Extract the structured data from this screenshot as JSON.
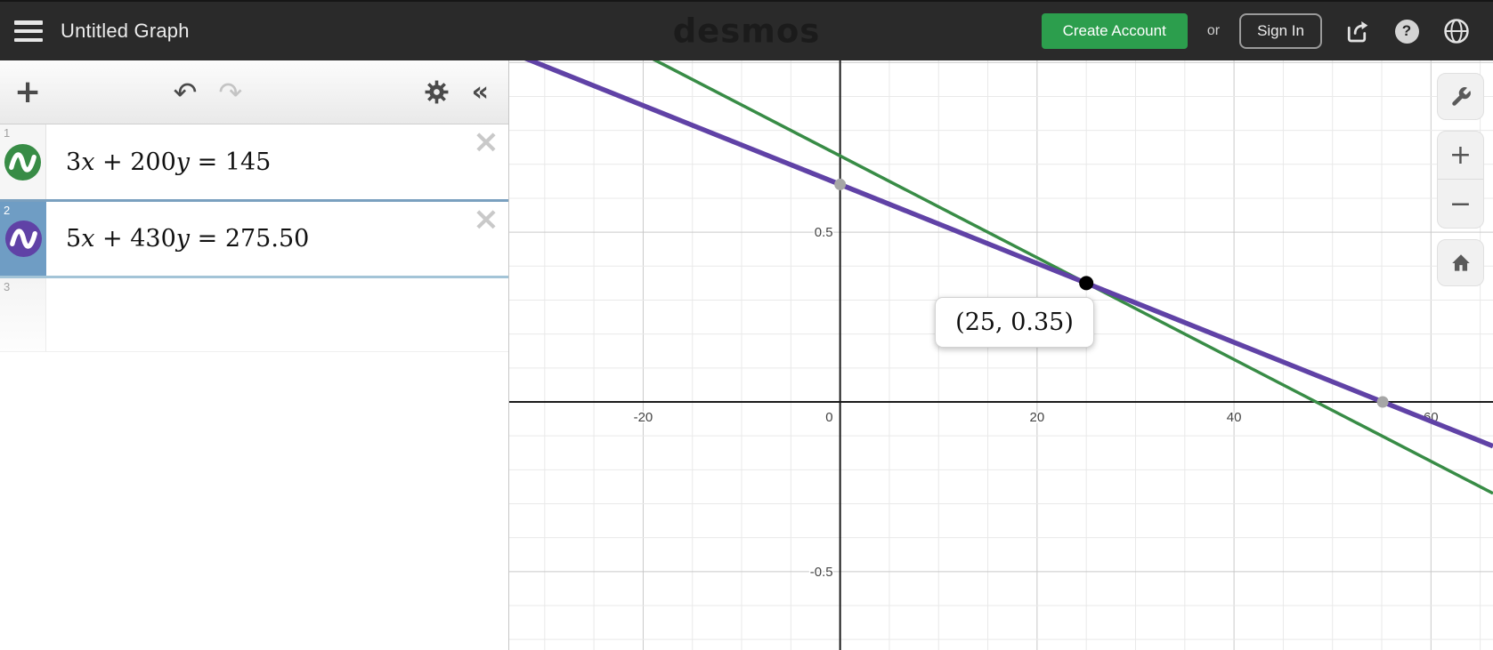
{
  "colors": {
    "topbar_bg": "#2a2a2a",
    "accent_green": "#2c9e4d",
    "selected_blue": "#6f9dc4",
    "line1_green": "#388c46",
    "line2_purple": "#6042a6"
  },
  "header": {
    "title": "Untitled Graph",
    "logo": "desmos",
    "create_account_label": "Create Account",
    "or_label": "or",
    "sign_in_label": "Sign In",
    "icons": [
      "menu-icon",
      "share-icon",
      "help-icon",
      "globe-icon"
    ]
  },
  "toolbar": {
    "add_label": "+",
    "undo_label": "↶",
    "redo_label": "↷",
    "redo_disabled": true,
    "settings_icon": "gear-icon",
    "collapse_label": "«"
  },
  "expressions": [
    {
      "index": "1",
      "selected": false,
      "icon_color": "#388c46",
      "close_label": "×",
      "segments": [
        [
          "n",
          "3"
        ],
        [
          "v",
          "x"
        ],
        [
          "o",
          " + "
        ],
        [
          "n",
          "200"
        ],
        [
          "v",
          "y"
        ],
        [
          "o",
          " = "
        ],
        [
          "n",
          "145"
        ]
      ]
    },
    {
      "index": "2",
      "selected": true,
      "icon_color": "#6042a6",
      "close_label": "×",
      "segments": [
        [
          "n",
          "5"
        ],
        [
          "v",
          "x"
        ],
        [
          "o",
          " + "
        ],
        [
          "n",
          "430"
        ],
        [
          "v",
          "y"
        ],
        [
          "o",
          " = "
        ],
        [
          "n",
          "275.50"
        ]
      ]
    },
    {
      "index": "3",
      "selected": false,
      "empty": true
    }
  ],
  "chart_data": {
    "type": "line",
    "title": "",
    "xlabel": "",
    "ylabel": "",
    "view": {
      "xmin": -33.6,
      "xmax": 66.3,
      "ymin": -0.731,
      "ymax": 1.006
    },
    "grid": {
      "on": true,
      "x_minor": 5,
      "x_major": 20,
      "y_minor": 0.1,
      "y_major": 0.5
    },
    "x_tick_labels": [
      {
        "v": -20,
        "t": "-20"
      },
      {
        "v": 0,
        "t": "0"
      },
      {
        "v": 20,
        "t": "20"
      },
      {
        "v": 40,
        "t": "40"
      },
      {
        "v": 60,
        "t": "60"
      }
    ],
    "y_tick_labels": [
      {
        "v": 0.5,
        "t": "0.5"
      },
      {
        "v": -0.5,
        "t": "-0.5"
      }
    ],
    "series": [
      {
        "name": "3x + 200y = 145",
        "color": "#388c46",
        "slope": -0.015,
        "intercept": 0.725,
        "width": 3.5
      },
      {
        "name": "5x + 430y = 275.50",
        "color": "#6042a6",
        "slope": -0.011628,
        "intercept": 0.640698,
        "width": 5.5
      }
    ],
    "points": [
      {
        "name": "y-intercept",
        "x": 0,
        "y": 0.6407,
        "color": "#a6a6a6",
        "r": 6.5
      },
      {
        "name": "x-intercept",
        "x": 55.1,
        "y": 0,
        "color": "#a6a6a6",
        "r": 6.5
      },
      {
        "name": "intersection",
        "x": 25,
        "y": 0.35,
        "color": "#000000",
        "r": 8
      }
    ],
    "tooltip": {
      "text": "(25, 0.35)"
    }
  },
  "graph_controls": {
    "wrench_icon": "wrench-icon",
    "zoom_in_label": "+",
    "zoom_out_label": "−",
    "home_icon": "home-icon"
  }
}
